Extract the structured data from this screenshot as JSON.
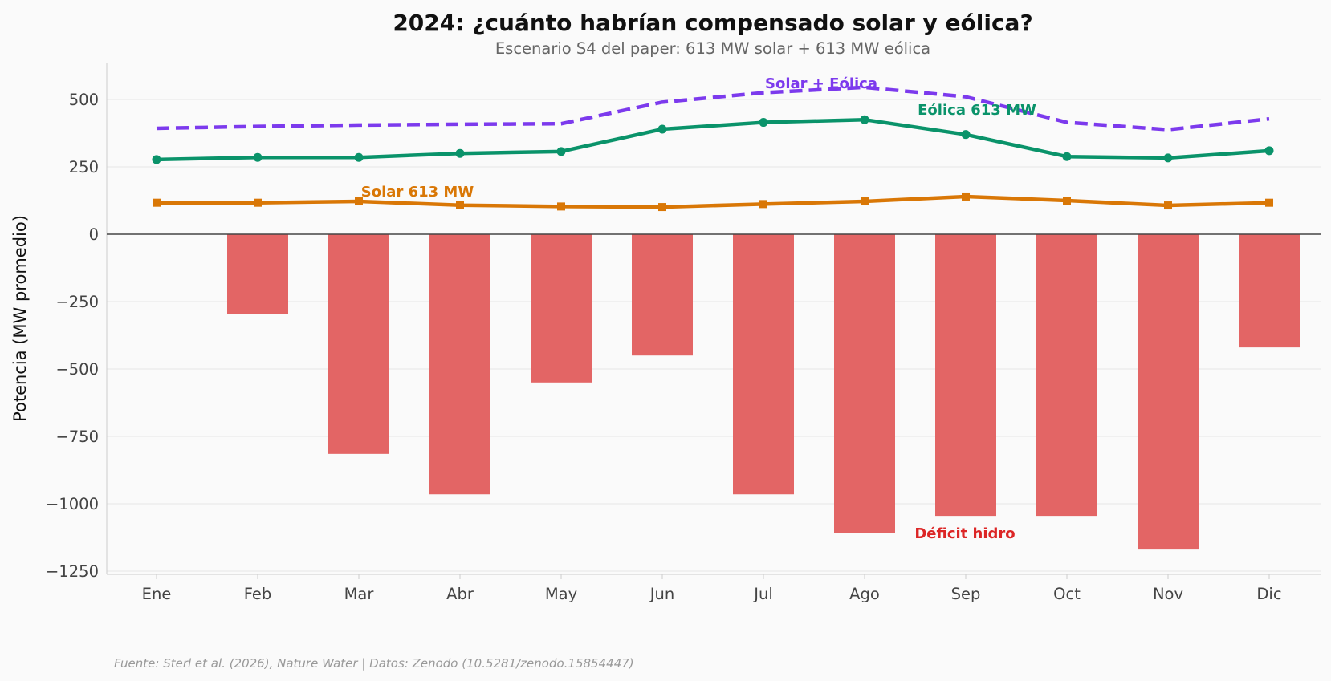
{
  "chart_data": {
    "type": "bar+line",
    "title": "2024: ¿cuánto habrían compensado solar y eólica?",
    "subtitle": "Escenario S4 del paper: 613 MW solar + 613 MW eólica",
    "ylabel": "Potencia (MW promedio)",
    "xlabel": "",
    "ylim": [
      -1250,
      630
    ],
    "yticks": [
      500,
      250,
      0,
      -250,
      -500,
      -750,
      -1000,
      -1250
    ],
    "ytick_labels": [
      "500",
      "250",
      "0",
      "−250",
      "−500",
      "−750",
      "−1000",
      "−1250"
    ],
    "grid": true,
    "categories": [
      "Ene",
      "Feb",
      "Mar",
      "Abr",
      "May",
      "Jun",
      "Jul",
      "Ago",
      "Sep",
      "Oct",
      "Nov",
      "Dic"
    ],
    "bars": {
      "name": "Déficit hidro",
      "label": "Déficit hidro",
      "color": "#e36565",
      "values": [
        0,
        -295,
        -815,
        -965,
        -550,
        -450,
        -965,
        -1110,
        -1045,
        -1045,
        -1170,
        -420
      ]
    },
    "series": [
      {
        "name": "Solar + Eólica",
        "label": "Solar + Eólica",
        "color": "#7c3aed",
        "style": "dashed",
        "marker": "none",
        "values": [
          393,
          400,
          405,
          408,
          410,
          490,
          525,
          545,
          510,
          415,
          388,
          428
        ]
      },
      {
        "name": "Eólica 613 MW",
        "label": "Eólica 613 MW",
        "color": "#0a936a",
        "style": "solid",
        "marker": "circle",
        "values": [
          277,
          285,
          285,
          300,
          307,
          390,
          415,
          425,
          370,
          288,
          283,
          310
        ]
      },
      {
        "name": "Solar 613 MW",
        "label": "Solar 613 MW",
        "color": "#d97706",
        "style": "solid",
        "marker": "square",
        "values": [
          117,
          117,
          122,
          108,
          103,
          101,
          112,
          122,
          140,
          125,
          107,
          117
        ]
      }
    ],
    "source": "Fuente: Sterl et al. (2026), Nature Water | Datos: Zenodo (10.5281/zenodo.15854447)"
  }
}
